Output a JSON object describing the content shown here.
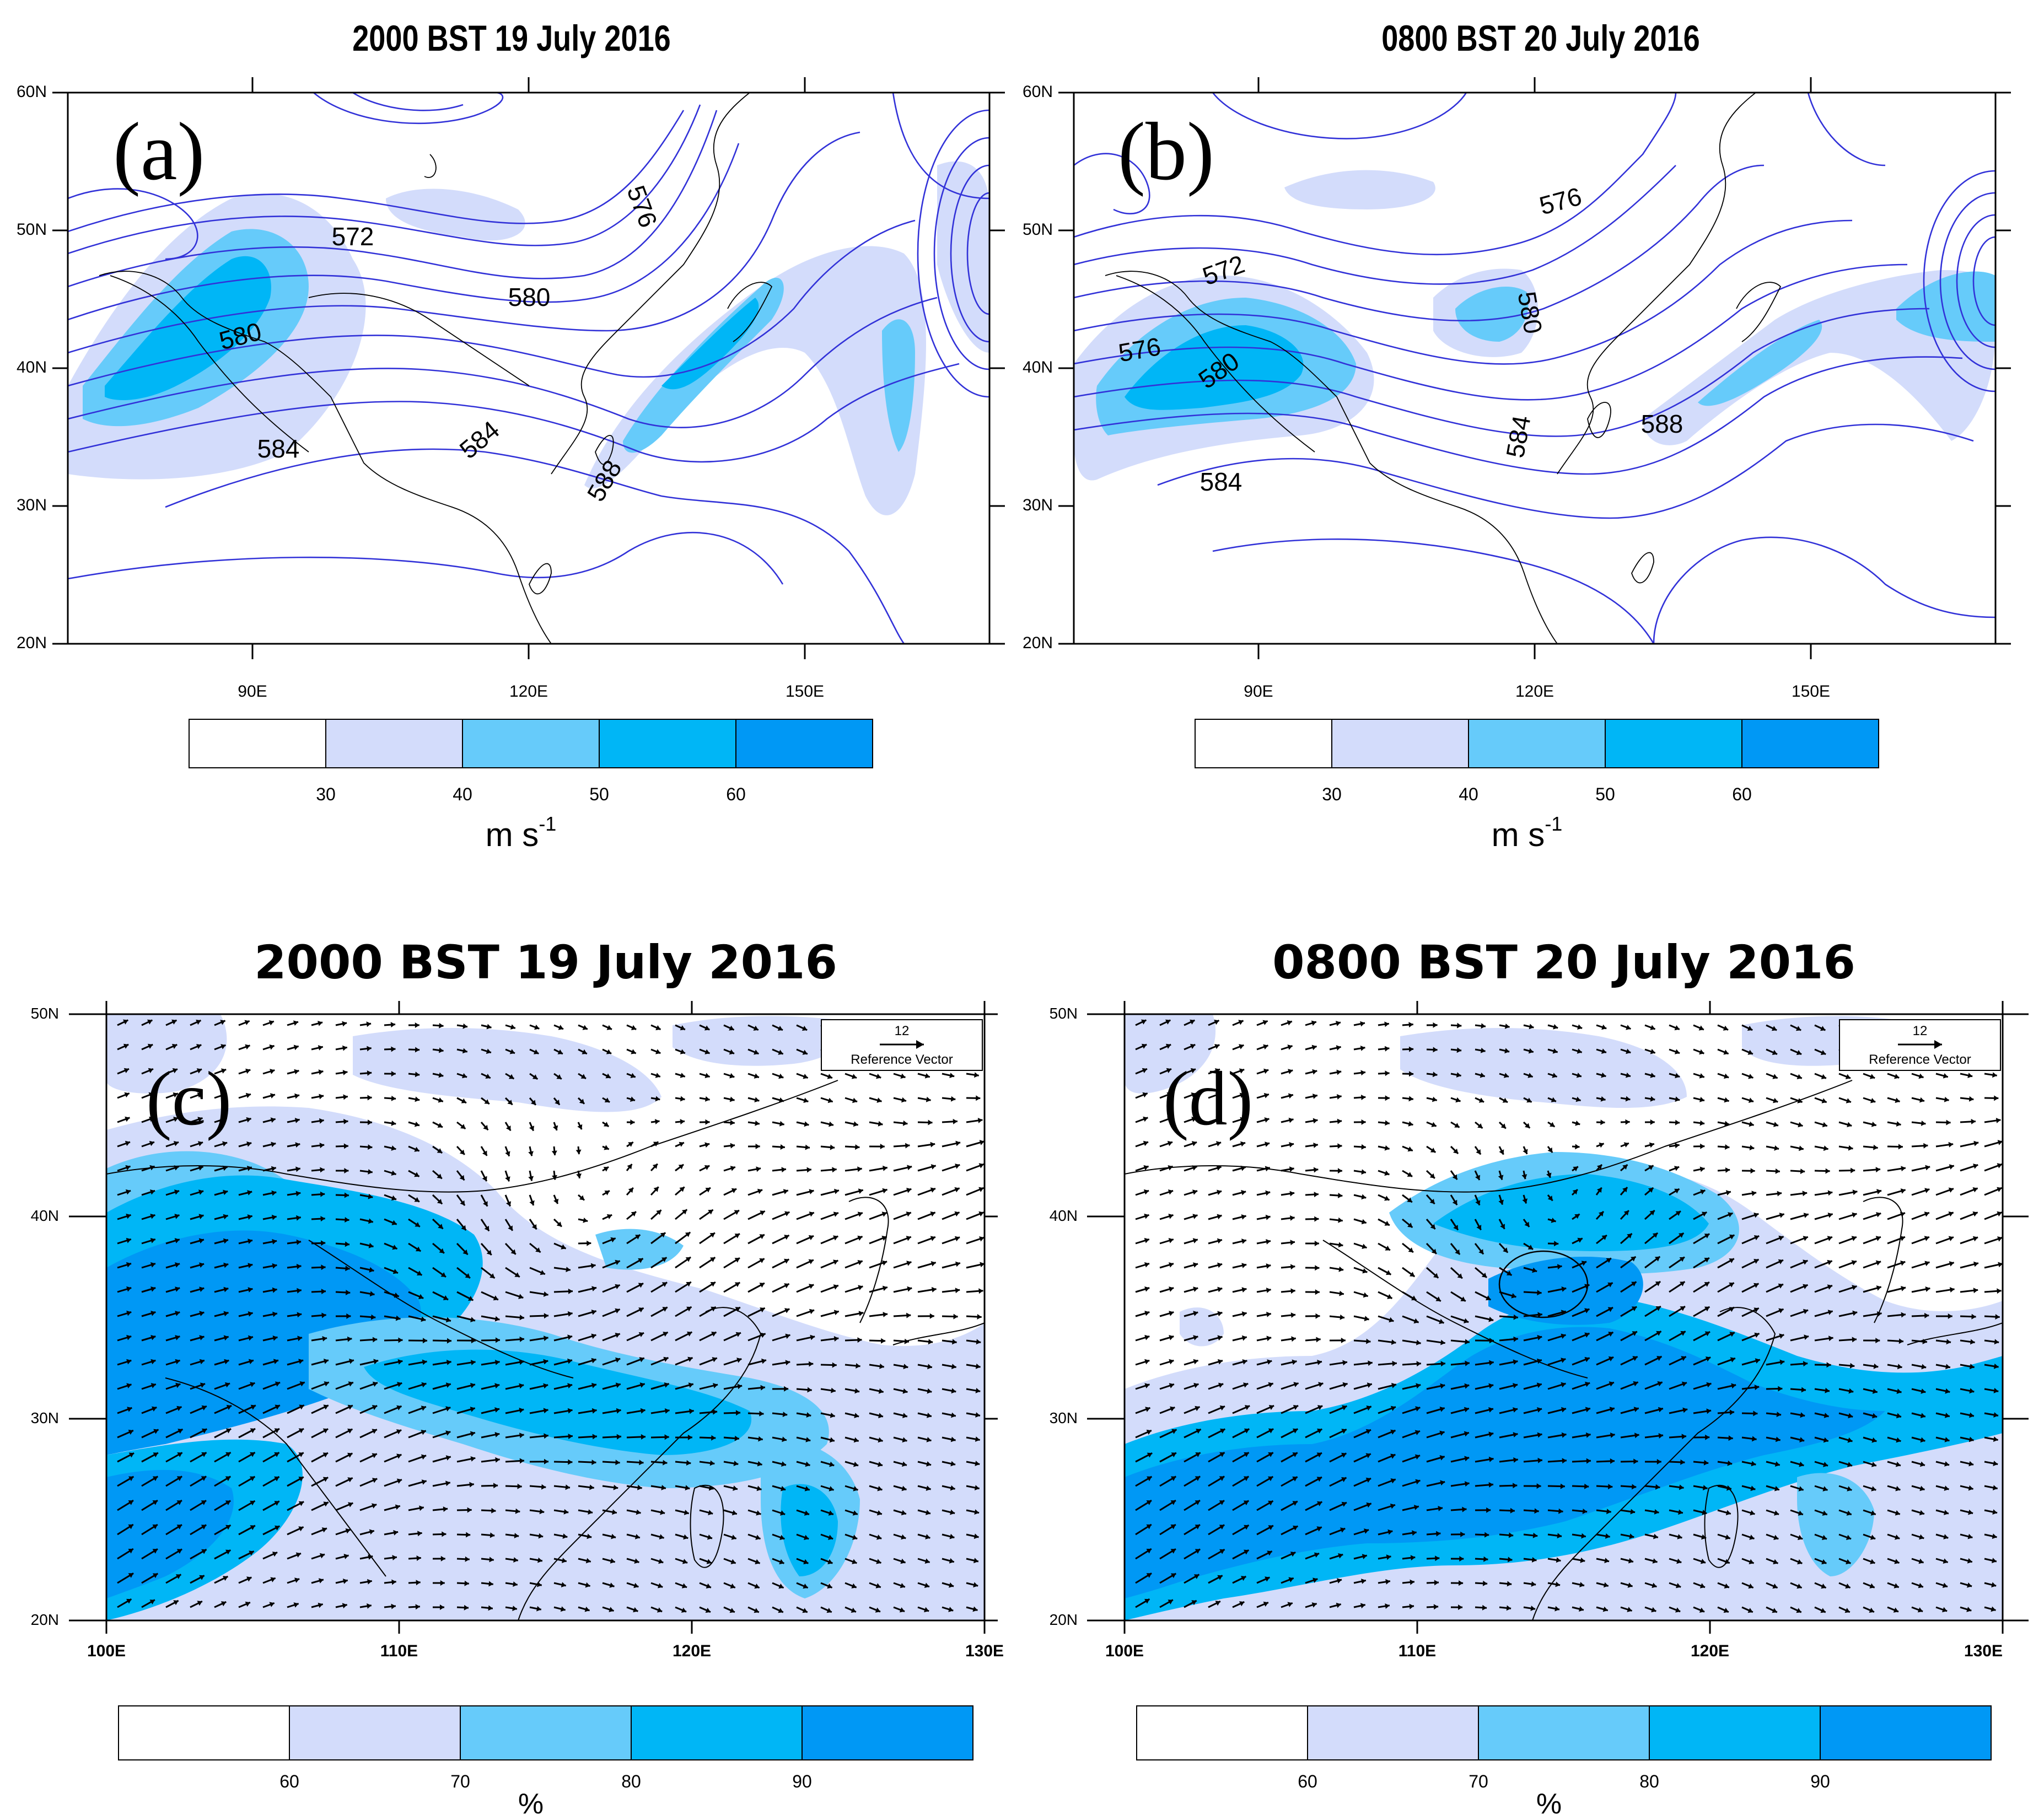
{
  "colors": {
    "fill_lvl1": "#d3dcfb",
    "fill_lvl2": "#66cbfa",
    "fill_lvl3": "#00b6f6",
    "fill_lvl4": "#0098f5",
    "contour": "#3232d8",
    "coast": "#000000"
  },
  "panels": [
    {
      "id": "a",
      "label": "(a)",
      "title": "2000 BST 19 July 2016",
      "type": "geopotential-height-and-wind-speed",
      "lat_ticks": [
        "60N",
        "50N",
        "40N",
        "30N",
        "20N"
      ],
      "lon_ticks": [
        "90E",
        "120E",
        "150E"
      ],
      "contour_labels": [
        "572",
        "576",
        "580",
        "580",
        "584",
        "584",
        "588"
      ],
      "colorbar": {
        "ticks": [
          "30",
          "40",
          "50",
          "60"
        ],
        "unit": "m s",
        "unit_exponent": "-1"
      }
    },
    {
      "id": "b",
      "label": "(b)",
      "title": "0800 BST 20 July 2016",
      "type": "geopotential-height-and-wind-speed",
      "lat_ticks": [
        "60N",
        "50N",
        "40N",
        "30N",
        "20N"
      ],
      "lon_ticks": [
        "90E",
        "120E",
        "150E"
      ],
      "contour_labels": [
        "572",
        "576",
        "576",
        "580",
        "580",
        "584",
        "584",
        "588"
      ],
      "colorbar": {
        "ticks": [
          "30",
          "40",
          "50",
          "60"
        ],
        "unit": "m s",
        "unit_exponent": "-1"
      }
    },
    {
      "id": "c",
      "label": "(c)",
      "title": "2000 BST 19 July 2016",
      "type": "relative-humidity-and-wind-vectors",
      "lat_ticks": [
        "50N",
        "40N",
        "30N",
        "20N"
      ],
      "lon_ticks": [
        "100E",
        "110E",
        "120E",
        "130E"
      ],
      "reference_vector": {
        "value": "12",
        "label": "Reference Vector"
      },
      "colorbar": {
        "ticks": [
          "60",
          "70",
          "80",
          "90"
        ],
        "unit": "%"
      }
    },
    {
      "id": "d",
      "label": "(d)",
      "title": "0800 BST 20 July 2016",
      "type": "relative-humidity-and-wind-vectors",
      "lat_ticks": [
        "50N",
        "40N",
        "30N",
        "20N"
      ],
      "lon_ticks": [
        "100E",
        "110E",
        "120E",
        "130E"
      ],
      "reference_vector": {
        "value": "12",
        "label": "Reference Vector"
      },
      "colorbar": {
        "ticks": [
          "60",
          "70",
          "80",
          "90"
        ],
        "unit": "%"
      }
    }
  ]
}
